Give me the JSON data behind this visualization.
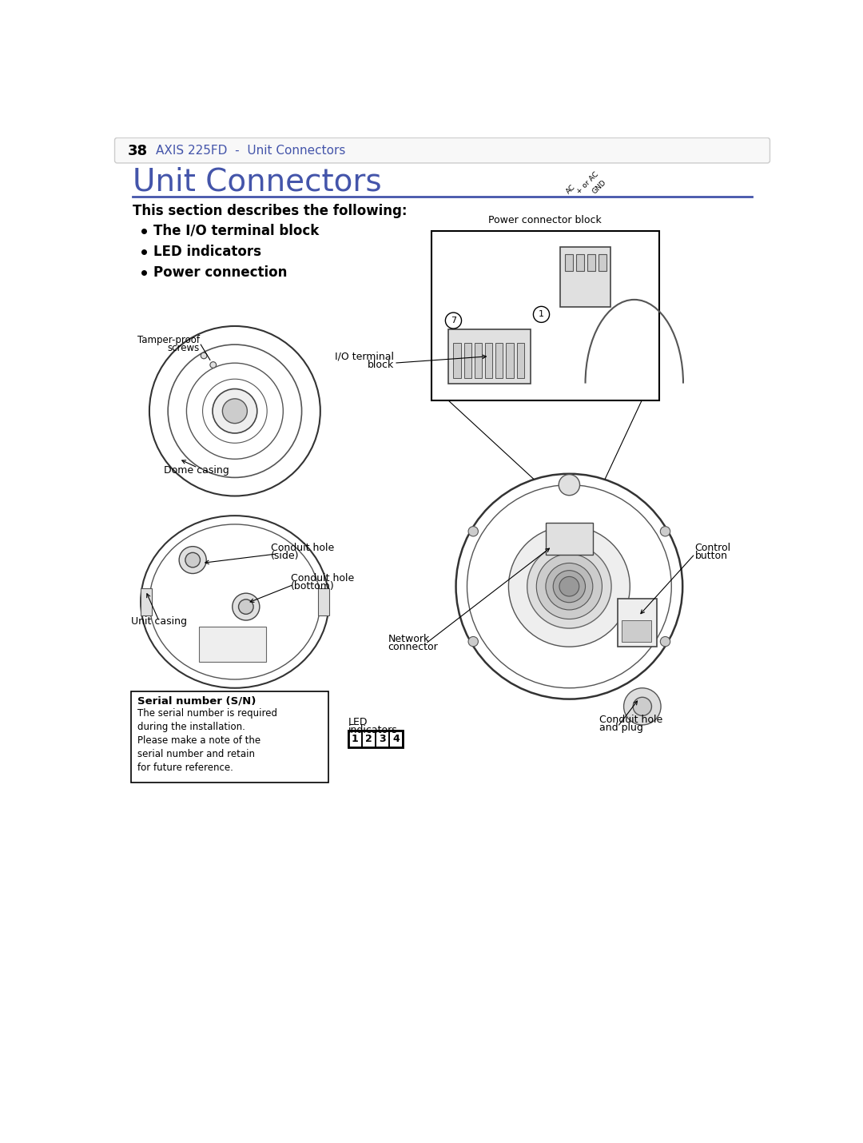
{
  "page_bg": "#ffffff",
  "header_border": "#cccccc",
  "header_page_num": "38",
  "header_text": "AXIS 225FD  -  Unit Connectors",
  "header_text_color": "#4455aa",
  "header_page_color": "#000000",
  "title": "Unit Connectors",
  "title_color": "#4455aa",
  "title_fontsize": 28,
  "divider_color": "#4455aa",
  "section_intro": "This section describes the following:",
  "bullet_items": [
    "The I/O terminal block",
    "LED indicators",
    "Power connection"
  ],
  "labels": {
    "tamper_proof": "Tamper-proof\nscrews",
    "dome_casing": "Dome casing",
    "unit_casing": "Unit casing",
    "conduit_side": "Conduit hole\n(side)",
    "conduit_bottom": "Conduit hole\n(bottom)",
    "io_terminal": "I/O terminal\nblock",
    "power_block": "Power connector block",
    "control_button": "Control\nbutton",
    "network_connector": "Network\nconnector",
    "conduit_plug": "Conduit hole\nand plug",
    "serial_number_title": "Serial number (S/N)",
    "serial_number_body": "The serial number is required\nduring the installation.\nPlease make a note of the\nserial number and retain\nfor future reference.",
    "led_label": "LED\nindicators",
    "led_numbers": [
      "1",
      "2",
      "3",
      "4"
    ]
  },
  "colors": {
    "black": "#000000",
    "dark_gray": "#333333",
    "mid_gray": "#555555",
    "light_gray": "#aaaaaa",
    "fill_light": "#eeeeee",
    "fill_mid": "#e0e0e0",
    "fill_dark": "#cccccc"
  }
}
